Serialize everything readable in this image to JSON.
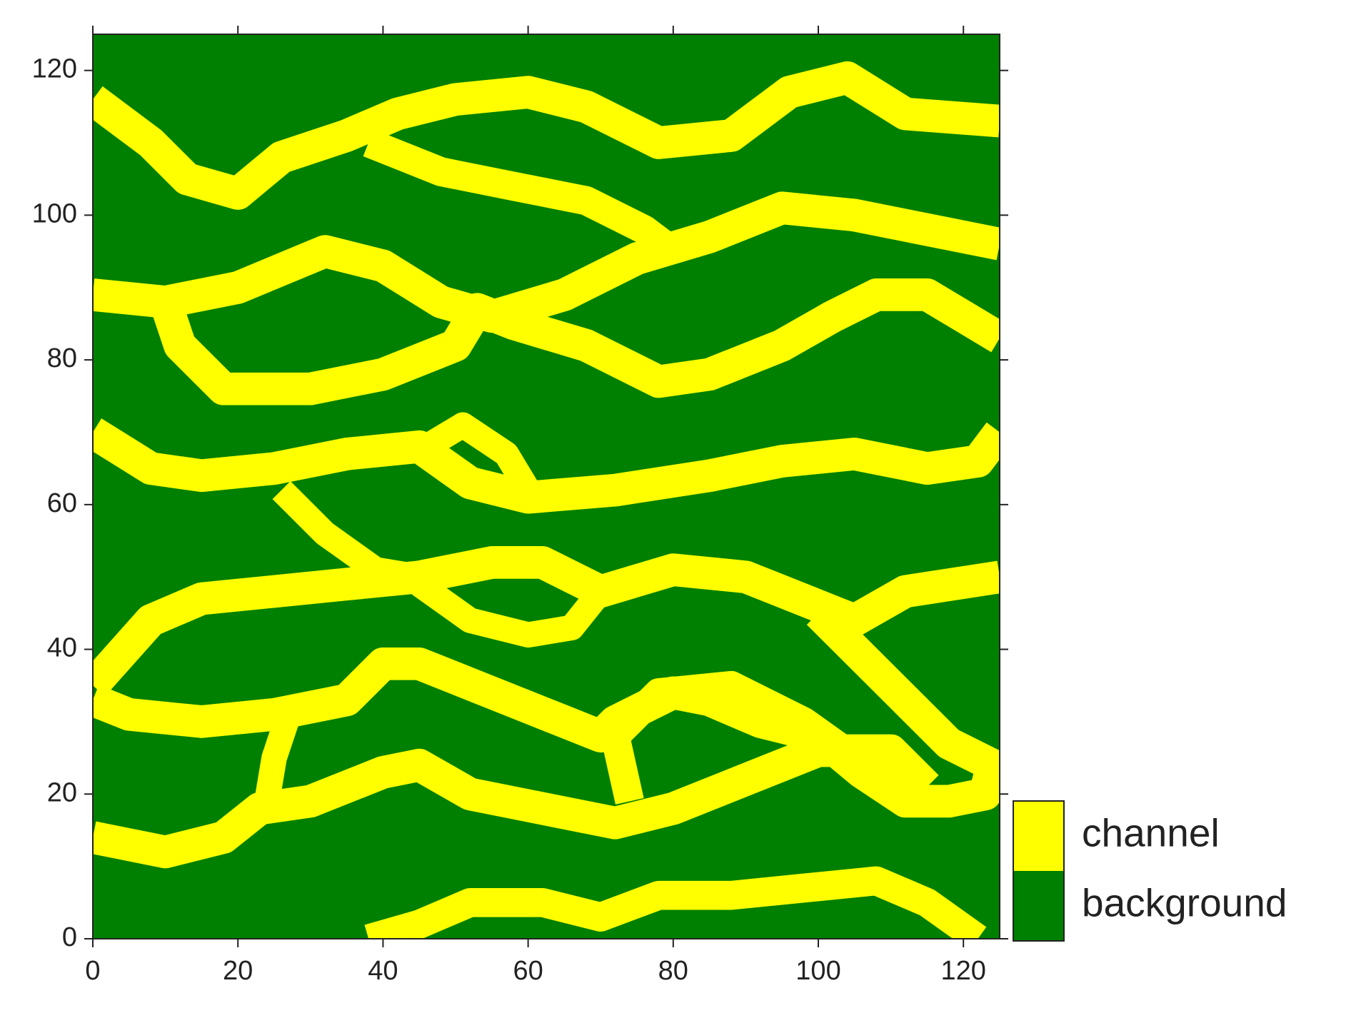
{
  "chart_data": {
    "type": "heatmap",
    "xlim": [
      0,
      125
    ],
    "ylim": [
      0,
      125
    ],
    "xticks": [
      0,
      20,
      40,
      60,
      80,
      100,
      120
    ],
    "yticks": [
      0,
      20,
      40,
      60,
      80,
      100,
      120
    ],
    "categories": [
      {
        "name": "channel",
        "color": "#ffff00"
      },
      {
        "name": "background",
        "color": "#008000"
      }
    ],
    "channels": [
      {
        "x": [
          0,
          8,
          13,
          20,
          26,
          35,
          42,
          50,
          60,
          68,
          78,
          88,
          96,
          104,
          112,
          125
        ],
        "y": [
          116,
          110,
          105,
          103,
          108,
          111,
          114,
          116,
          117,
          115,
          110,
          111,
          117,
          119,
          114,
          113
        ],
        "width": 4.5
      },
      {
        "x": [
          38,
          48,
          58,
          68,
          76,
          80
        ],
        "y": [
          110,
          106,
          104,
          102,
          98,
          95
        ],
        "width": 4
      },
      {
        "x": [
          0,
          10,
          20,
          32,
          40,
          48,
          55,
          65,
          75,
          85,
          95,
          105,
          115,
          125
        ],
        "y": [
          89,
          88,
          90,
          95,
          93,
          88,
          86,
          89,
          94,
          97,
          101,
          100,
          98,
          96
        ],
        "width": 4.5
      },
      {
        "x": [
          10,
          12,
          18,
          30,
          40,
          50,
          53,
          58,
          68,
          78,
          85,
          95,
          102,
          108,
          115,
          120,
          125
        ],
        "y": [
          88,
          82,
          76,
          76,
          78,
          82,
          87,
          85,
          82,
          77,
          78,
          82,
          86,
          89,
          89,
          86,
          83
        ],
        "width": 4.5
      },
      {
        "x": [
          0,
          8,
          15,
          25,
          35,
          45,
          52,
          60,
          72,
          85,
          95,
          105,
          115,
          122,
          125
        ],
        "y": [
          70,
          65,
          64,
          65,
          67,
          68,
          63,
          61,
          62,
          64,
          66,
          67,
          65,
          66,
          70
        ],
        "width": 4.5
      },
      {
        "x": [
          46,
          51,
          57,
          60
        ],
        "y": [
          68,
          71,
          67,
          62
        ],
        "width": 3.5
      },
      {
        "x": [
          26,
          32,
          39,
          45
        ],
        "y": [
          62,
          56,
          51,
          50
        ],
        "width": 3.5
      },
      {
        "x": [
          0,
          8,
          15,
          25,
          35,
          45,
          55,
          62,
          70,
          80,
          90,
          100,
          105,
          112,
          125
        ],
        "y": [
          35,
          44,
          47,
          48,
          49,
          50,
          52,
          52,
          48,
          51,
          50,
          46,
          44,
          48,
          50
        ],
        "width": 4.5
      },
      {
        "x": [
          45,
          52,
          60,
          66,
          70
        ],
        "y": [
          49,
          44,
          42,
          43,
          48
        ],
        "width": 3.5
      },
      {
        "x": [
          100,
          110,
          118,
          124,
          123,
          118,
          112,
          106,
          100,
          92,
          85,
          80,
          72,
          70,
          65,
          55,
          45,
          40,
          35,
          25,
          15,
          5,
          0
        ],
        "y": [
          45,
          35,
          27,
          24,
          20,
          19,
          19,
          23,
          28,
          30,
          33,
          34,
          30,
          28,
          30,
          34,
          38,
          38,
          33,
          31,
          30,
          31,
          33
        ],
        "width": 4.5
      },
      {
        "x": [
          24,
          25,
          27
        ],
        "y": [
          19,
          25,
          31
        ],
        "width": 3.5
      },
      {
        "x": [
          74,
          72,
          78,
          88,
          98,
          105,
          112,
          118
        ],
        "y": [
          19,
          28,
          34,
          35,
          30,
          25,
          19,
          19
        ],
        "width": 4
      },
      {
        "x": [
          0,
          10,
          18,
          23,
          30,
          40,
          45,
          52,
          62,
          72,
          80,
          90,
          100,
          110,
          115
        ],
        "y": [
          14,
          12,
          14,
          18,
          19,
          23,
          24,
          20,
          18,
          16,
          18,
          22,
          26,
          26,
          21
        ],
        "width": 4.5
      },
      {
        "x": [
          38,
          45,
          52,
          62,
          70,
          78,
          88,
          98,
          108,
          115,
          122
        ],
        "y": [
          0,
          2,
          5,
          5,
          3,
          6,
          6,
          7,
          8,
          5,
          0
        ],
        "width": 4
      }
    ]
  }
}
